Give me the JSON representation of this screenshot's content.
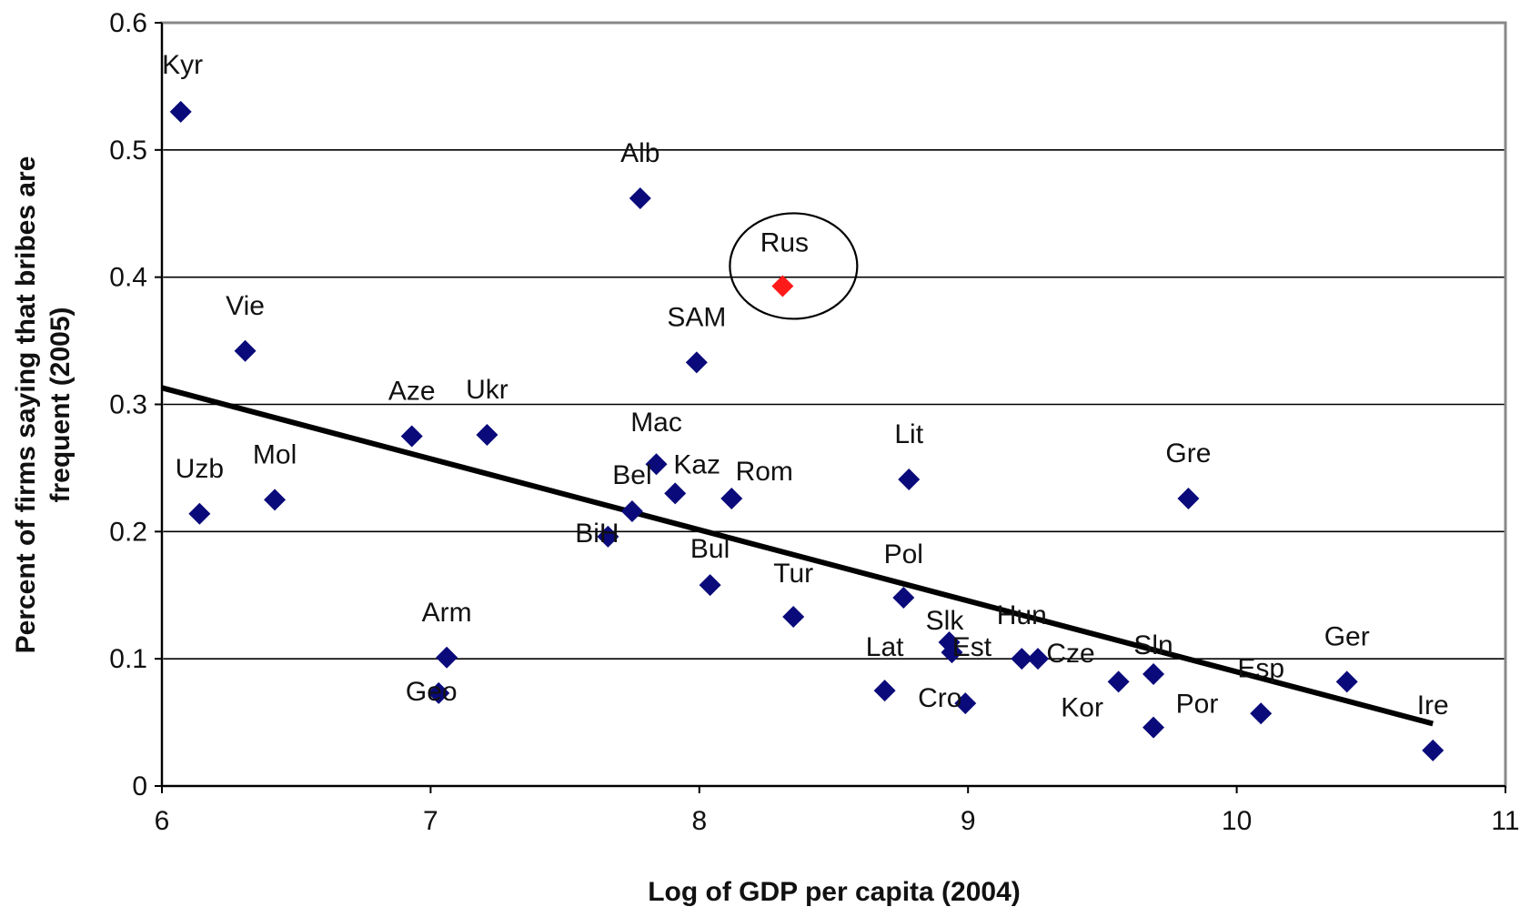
{
  "chart_data": {
    "type": "scatter",
    "title": "",
    "xlabel": "Log of GDP per capita (2004)",
    "ylabel_lines": [
      "Percent of firms saying that bribes are",
      "frequent (2005)"
    ],
    "xlim": [
      6,
      11
    ],
    "ylim": [
      0,
      0.6
    ],
    "x_ticks": [
      "6",
      "7",
      "8",
      "9",
      "10",
      "11"
    ],
    "y_ticks": [
      "0",
      "0.1",
      "0.2",
      "0.3",
      "0.4",
      "0.5",
      "0.6"
    ],
    "grid": "horizontal",
    "legend": "none",
    "marker": "diamond",
    "colors": {
      "points": "#0a0a7a",
      "highlight": "#ff1a1a",
      "line": "#000000",
      "grid": "#000000",
      "frame": "#888888"
    },
    "points": [
      {
        "label": "Kyr",
        "x": 6.07,
        "y": 0.53
      },
      {
        "label": "Uzb",
        "x": 6.14,
        "y": 0.214
      },
      {
        "label": "Vie",
        "x": 6.31,
        "y": 0.342
      },
      {
        "label": "Mol",
        "x": 6.42,
        "y": 0.225
      },
      {
        "label": "Aze",
        "x": 6.93,
        "y": 0.275
      },
      {
        "label": "Arm",
        "x": 7.06,
        "y": 0.101
      },
      {
        "label": "Geo",
        "x": 7.03,
        "y": 0.073
      },
      {
        "label": "Ukr",
        "x": 7.21,
        "y": 0.276
      },
      {
        "label": "BiH",
        "x": 7.66,
        "y": 0.196
      },
      {
        "label": "Bel",
        "x": 7.75,
        "y": 0.216
      },
      {
        "label": "Mac",
        "x": 7.84,
        "y": 0.253
      },
      {
        "label": "Alb",
        "x": 7.78,
        "y": 0.462
      },
      {
        "label": "Kaz",
        "x": 7.91,
        "y": 0.23
      },
      {
        "label": "SAM",
        "x": 7.99,
        "y": 0.333
      },
      {
        "label": "Bul",
        "x": 8.04,
        "y": 0.158
      },
      {
        "label": "Rom",
        "x": 8.12,
        "y": 0.226
      },
      {
        "label": "Rus",
        "x": 8.31,
        "y": 0.393,
        "highlight": true
      },
      {
        "label": "Tur",
        "x": 8.35,
        "y": 0.133
      },
      {
        "label": "Lat",
        "x": 8.69,
        "y": 0.075
      },
      {
        "label": "Pol",
        "x": 8.76,
        "y": 0.148
      },
      {
        "label": "Lit",
        "x": 8.78,
        "y": 0.241
      },
      {
        "label": "Slk",
        "x": 8.93,
        "y": 0.113
      },
      {
        "label": "Est",
        "x": 8.94,
        "y": 0.105
      },
      {
        "label": "Cro",
        "x": 8.99,
        "y": 0.065
      },
      {
        "label": "Hun",
        "x": 9.2,
        "y": 0.1
      },
      {
        "label": "Cze",
        "x": 9.26,
        "y": 0.1
      },
      {
        "label": "Kor",
        "x": 9.56,
        "y": 0.082
      },
      {
        "label": "Sln",
        "x": 9.69,
        "y": 0.088
      },
      {
        "label": "Por",
        "x": 9.69,
        "y": 0.046
      },
      {
        "label": "Gre",
        "x": 9.82,
        "y": 0.226
      },
      {
        "label": "Esp",
        "x": 10.09,
        "y": 0.057
      },
      {
        "label": "Ger",
        "x": 10.41,
        "y": 0.082
      },
      {
        "label": "Ire",
        "x": 10.73,
        "y": 0.028
      }
    ],
    "trendline": {
      "x": [
        6.0,
        10.73
      ],
      "y": [
        0.313,
        0.049
      ]
    }
  }
}
